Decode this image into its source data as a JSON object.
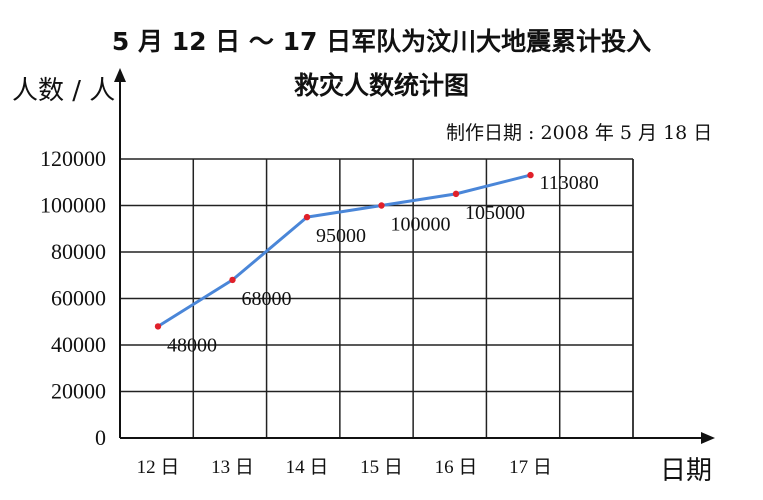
{
  "chart_data": {
    "type": "line",
    "title": "5 月 12 日 ～ 17 日军队为汶川大地震累计投入",
    "subtitle": "救灾人数统计图",
    "note": "制作日期 : 2008 年 5 月 18 日",
    "ylabel": "人数 / 人",
    "xlabel": "日期",
    "categories": [
      "12 日",
      "13 日",
      "14 日",
      "15 日",
      "16 日",
      "17 日"
    ],
    "values": [
      48000,
      68000,
      95000,
      100000,
      105000,
      113080
    ],
    "data_labels": [
      "48000",
      "68000",
      "95000",
      "100000",
      "105000",
      "113080"
    ],
    "yticks": [
      "0",
      "20000",
      "40000",
      "60000",
      "80000",
      "100000",
      "120000"
    ],
    "ylim": [
      0,
      120000
    ],
    "grid": true,
    "colors": {
      "line": "#4a86d8",
      "point": "#e0202a",
      "grid": "#222222"
    }
  }
}
